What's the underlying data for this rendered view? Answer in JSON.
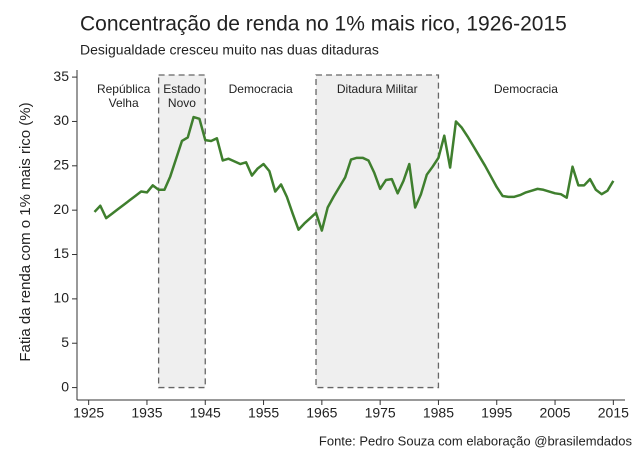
{
  "chart_data": {
    "type": "line",
    "title": "Concentração de renda no 1% mais rico, 1926-2015",
    "subtitle": "Desigualdade cresceu muito nas duas ditaduras",
    "y_label": "Fatia da renda com o 1% mais rico (%)",
    "source": "Fonte: Pedro Souza com elaboração @brasilemdados",
    "x": [
      1926,
      1927,
      1928,
      1929,
      1930,
      1931,
      1932,
      1933,
      1934,
      1935,
      1936,
      1937,
      1938,
      1939,
      1940,
      1941,
      1942,
      1943,
      1944,
      1945,
      1946,
      1947,
      1948,
      1949,
      1950,
      1951,
      1952,
      1953,
      1954,
      1955,
      1956,
      1957,
      1958,
      1959,
      1960,
      1961,
      1962,
      1963,
      1964,
      1965,
      1966,
      1967,
      1968,
      1969,
      1970,
      1971,
      1972,
      1973,
      1974,
      1975,
      1976,
      1977,
      1978,
      1979,
      1980,
      1981,
      1982,
      1983,
      1984,
      1985,
      1986,
      1987,
      1988,
      1989,
      1990,
      1991,
      1992,
      1993,
      1994,
      1995,
      1996,
      1997,
      1998,
      1999,
      2000,
      2001,
      2002,
      2003,
      2004,
      2005,
      2006,
      2007,
      2008,
      2009,
      2010,
      2011,
      2012,
      2013,
      2014,
      2015
    ],
    "series": [
      {
        "color": "#3f7f2e",
        "values": [
          19.8,
          20.5,
          19.1,
          19.6,
          20.1,
          20.6,
          21.1,
          21.6,
          22.1,
          22.0,
          22.8,
          22.3,
          22.3,
          23.8,
          25.8,
          27.8,
          28.2,
          30.5,
          30.3,
          27.9,
          27.8,
          28.1,
          25.6,
          25.8,
          25.5,
          25.2,
          25.4,
          23.9,
          24.7,
          25.2,
          24.4,
          22.1,
          22.9,
          21.5,
          19.6,
          17.8,
          18.5,
          19.1,
          19.7,
          17.7,
          20.3,
          21.5,
          22.6,
          23.7,
          25.7,
          25.9,
          25.9,
          25.6,
          24.2,
          22.4,
          23.4,
          23.5,
          21.9,
          23.3,
          25.2,
          20.3,
          21.8,
          24.0,
          24.9,
          25.9,
          28.4,
          24.8,
          30.0,
          29.3,
          28.3,
          27.2,
          26.1,
          25.0,
          23.8,
          22.6,
          21.6,
          21.5,
          21.5,
          21.7,
          22.0,
          22.2,
          22.4,
          22.3,
          22.1,
          21.9,
          21.8,
          21.4,
          24.9,
          22.8,
          22.8,
          23.5,
          22.3,
          21.8,
          22.2,
          23.3
        ]
      }
    ],
    "periods": [
      {
        "label": [
          "República",
          "Velha"
        ]
      },
      {
        "label": [
          "Estado",
          "Novo"
        ],
        "start": 1937,
        "end": 1945
      },
      {
        "label": [
          "Democracia"
        ]
      },
      {
        "label": [
          "Ditadura Militar"
        ],
        "start": 1964,
        "end": 1985
      },
      {
        "label": [
          "Democracia"
        ]
      }
    ],
    "xlim": [
      1923,
      2017
    ],
    "xticks": [
      1925,
      1935,
      1945,
      1955,
      1965,
      1975,
      1985,
      1995,
      2005,
      2015
    ],
    "ylim": [
      -1.4,
      35.8
    ],
    "yticks": [
      0,
      5,
      10,
      15,
      20,
      25,
      30,
      35
    ],
    "grid": false
  }
}
